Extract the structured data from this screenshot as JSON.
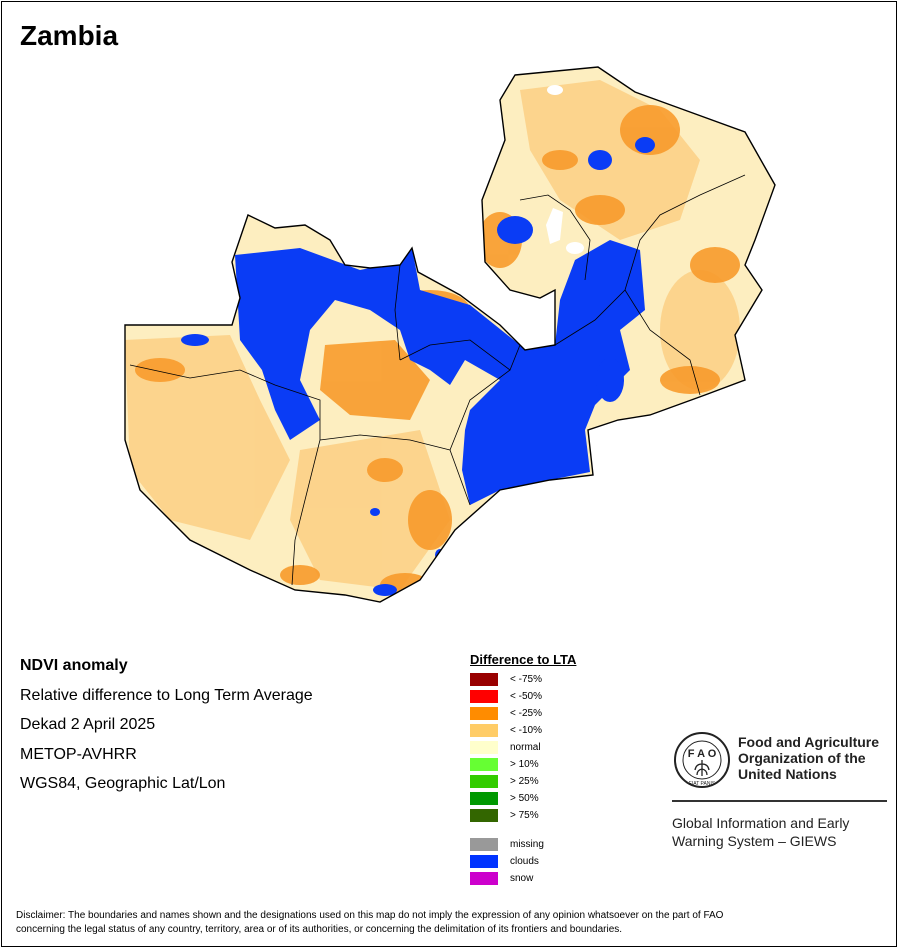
{
  "title": "Zambia",
  "info": {
    "heading": "NDVI anomaly",
    "line1": "Relative difference to Long Term Average",
    "line2": "Dekad 2 April 2025",
    "line3": "METOP-AVHRR",
    "line4": "WGS84, Geographic Lat/Lon"
  },
  "legend": {
    "title": "Difference to LTA",
    "classes": [
      {
        "label": "< -75%",
        "color": "#990000"
      },
      {
        "label": "< -50%",
        "color": "#ff0000"
      },
      {
        "label": "< -25%",
        "color": "#ff8c00"
      },
      {
        "label": "< -10%",
        "color": "#ffcc66"
      },
      {
        "label": "normal",
        "color": "#ffffcc"
      },
      {
        "label": "> 10%",
        "color": "#66ff33"
      },
      {
        "label": "> 25%",
        "color": "#33cc00"
      },
      {
        "label": "> 50%",
        "color": "#009900"
      },
      {
        "label": "> 75%",
        "color": "#336600"
      }
    ],
    "other": [
      {
        "label": "missing",
        "color": "#999999"
      },
      {
        "label": "clouds",
        "color": "#0033ff"
      },
      {
        "label": "snow",
        "color": "#cc00cc"
      }
    ]
  },
  "map": {
    "colors": {
      "normal": "#fdeec0",
      "light": "#fcd28a",
      "orange": "#f89b2c",
      "clouds": "#0a3cf5",
      "border": "#000000"
    }
  },
  "logo": {
    "org_line1": "Food and Agriculture",
    "org_line2": "Organization of the",
    "org_line3": "United Nations",
    "sub_line1": "Global Information and Early",
    "sub_line2": "Warning System – GIEWS",
    "emblem_text": "F A O",
    "emblem_motto": "FIAT PANIS"
  },
  "disclaimer": {
    "line1": "Disclaimer: The boundaries and names shown and the designations used on this map do not imply the expression of any opinion whatsoever on the part of FAO",
    "line2": "concerning the legal status of any country, territory, area or of its authorities, or concerning the delimitation of its frontiers and boundaries."
  }
}
